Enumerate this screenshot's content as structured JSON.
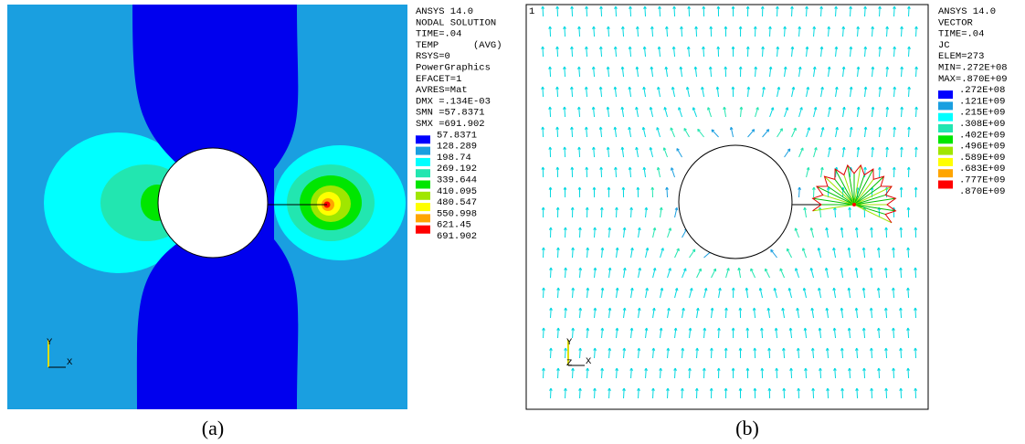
{
  "panels": [
    {
      "info": [
        "ANSYS 14.0",
        "NODAL SOLUTION",
        "TIME=.04",
        "TEMP      (AVG)",
        "RSYS=0",
        "PowerGraphics",
        "EFACET=1",
        "AVRES=Mat",
        "DMX =.134E-03",
        "SMN =57.8371",
        "SMX =691.902"
      ],
      "legend_labels": [
        "57.8371",
        "128.289",
        "198.74",
        "269.192",
        "339.644",
        "410.095",
        "480.547",
        "550.998",
        "621.45",
        "691.902"
      ],
      "legend_colors": [
        "#0000ff",
        "#1a9fe0",
        "#00ffff",
        "#22e6b0",
        "#00e600",
        "#a0e600",
        "#ffff00",
        "#ffa500",
        "#ff0000"
      ],
      "triad": [
        "Y",
        "X"
      ],
      "caption": "(a)"
    },
    {
      "corner": "1",
      "info": [
        "ANSYS 14.0",
        "VECTOR",
        "TIME=.04",
        "JC",
        "ELEM=273",
        "MIN=.272E+08",
        "MAX=.870E+09"
      ],
      "legend_labels": [
        ".272E+08",
        ".121E+09",
        ".215E+09",
        ".308E+09",
        ".402E+09",
        ".496E+09",
        ".589E+09",
        ".683E+09",
        ".777E+09",
        ".870E+09"
      ],
      "legend_colors": [
        "#0000ff",
        "#1a9fe0",
        "#00ffff",
        "#22e6b0",
        "#00e600",
        "#a0e600",
        "#ffff00",
        "#ffa500",
        "#ff0000"
      ],
      "triad": [
        "Y",
        "Z",
        "X"
      ],
      "caption": "(b)"
    }
  ]
}
